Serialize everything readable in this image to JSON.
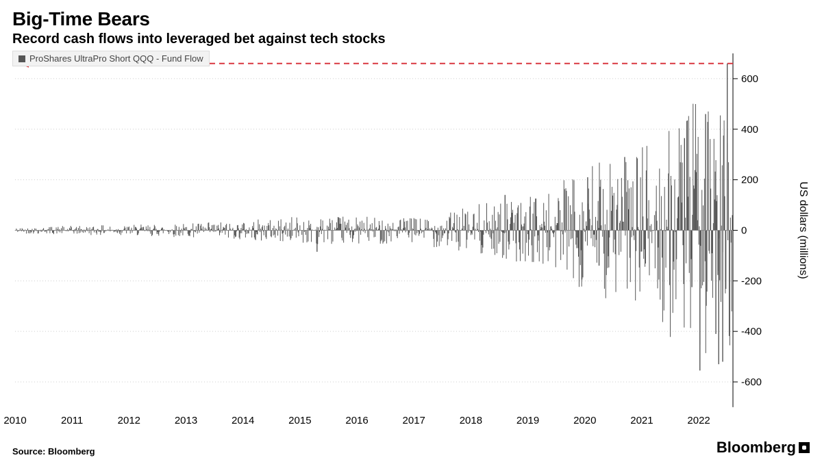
{
  "title": "Big-Time Bears",
  "subtitle": "Record cash flows into leveraged bet against tech stocks",
  "legend_label": "ProShares UltraPro Short QQQ - Fund Flow",
  "source": "Source: Bloomberg",
  "brand": "Bloomberg",
  "y_axis_label": "US dollars (millions)",
  "chart": {
    "type": "bar-dense-timeseries",
    "background_color": "#ffffff",
    "bar_color": "#555555",
    "grid_color": "#cccccc",
    "zero_line_color": "#888888",
    "x_years": [
      2010,
      2011,
      2012,
      2013,
      2014,
      2015,
      2016,
      2017,
      2018,
      2019,
      2020,
      2021,
      2022
    ],
    "x_range_end_year": 2022.6,
    "ylim": [
      -700,
      700
    ],
    "y_ticks": [
      -600,
      -400,
      -200,
      0,
      200,
      400,
      600
    ],
    "year_amplitude": [
      {
        "year": 2010,
        "amp": 12
      },
      {
        "year": 2011,
        "amp": 18
      },
      {
        "year": 2012,
        "amp": 22
      },
      {
        "year": 2013,
        "amp": 28
      },
      {
        "year": 2014,
        "amp": 40
      },
      {
        "year": 2015,
        "amp": 55
      },
      {
        "year": 2016,
        "amp": 55
      },
      {
        "year": 2017,
        "amp": 50
      },
      {
        "year": 2018,
        "amp": 100
      },
      {
        "year": 2019,
        "amp": 130
      },
      {
        "year": 2020,
        "amp": 260
      },
      {
        "year": 2021,
        "amp": 330
      },
      {
        "year": 2022,
        "amp": 520
      }
    ],
    "spikes": [
      {
        "year": 2015.3,
        "value": -85
      },
      {
        "year": 2018.6,
        "value": 140
      },
      {
        "year": 2019.95,
        "value": -195
      },
      {
        "year": 2020.05,
        "value": 210
      },
      {
        "year": 2020.25,
        "value": -140
      },
      {
        "year": 2020.7,
        "value": 290
      },
      {
        "year": 2021.75,
        "value": 365
      },
      {
        "year": 2021.88,
        "value": -225
      },
      {
        "year": 2022.02,
        "value": -555
      },
      {
        "year": 2022.12,
        "value": 460
      },
      {
        "year": 2022.3,
        "value": -410
      },
      {
        "year": 2022.35,
        "value": -530
      },
      {
        "year": 2022.42,
        "value": -520
      },
      {
        "year": 2022.5,
        "value": 660
      }
    ],
    "reference_line": {
      "y_value": 660,
      "color": "#d9363e",
      "dash": "8,6",
      "width": 2,
      "arrow_left": true
    },
    "samples_per_year": 90,
    "random_seed": 42
  }
}
